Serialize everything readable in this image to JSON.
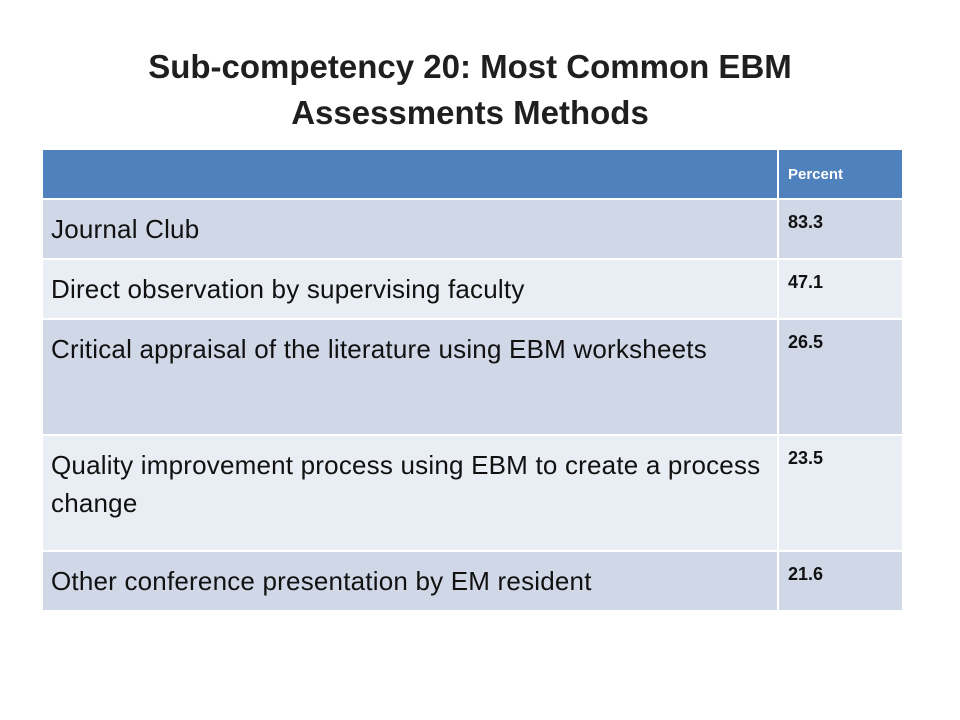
{
  "title": {
    "line1": "Sub-competency 20:  Most Common EBM",
    "line2": "Assessments Methods"
  },
  "table": {
    "headers": [
      "",
      "Percent"
    ],
    "rows": [
      {
        "method": "Journal Club",
        "percent": "83.3"
      },
      {
        "method": "Direct observation by supervising faculty",
        "percent": "47.1"
      },
      {
        "method": "Critical appraisal of the literature using EBM worksheets",
        "percent": "26.5"
      },
      {
        "method": "Quality improvement process using EBM to create a process change",
        "percent": "23.5"
      },
      {
        "method": "Other conference presentation by EM resident",
        "percent": "21.6"
      }
    ]
  },
  "colors": {
    "header": "#4f81bd",
    "row_odd": "#d0d8e8",
    "row_even": "#e9edf4"
  }
}
